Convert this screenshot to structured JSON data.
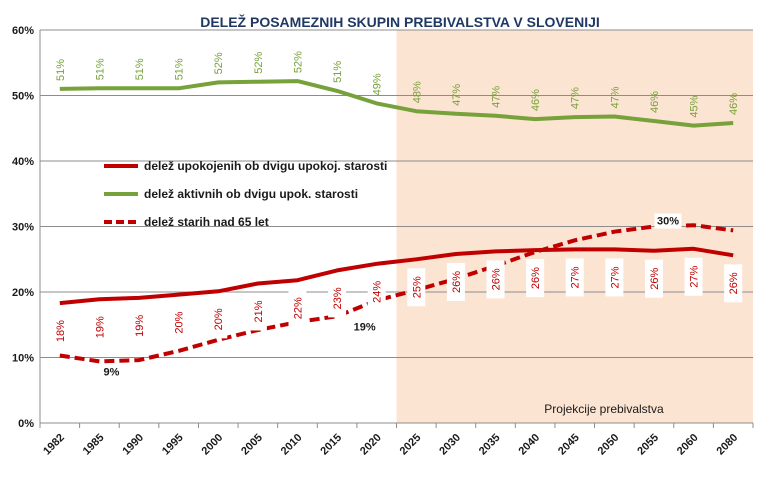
{
  "chart_data": {
    "type": "line",
    "title": "DELEŽ POSAMEZNIH SKUPIN PREBIVALSTVA V SLOVENIJI",
    "x": [
      "1982",
      "1985",
      "1990",
      "1995",
      "2000",
      "2005",
      "2010",
      "2015",
      "2020",
      "2025",
      "2030",
      "2035",
      "2040",
      "2045",
      "2050",
      "2055",
      "2060",
      "2080"
    ],
    "ylim": [
      0,
      60
    ],
    "yticks": [
      "0%",
      "10%",
      "20%",
      "30%",
      "40%",
      "50%",
      "60%"
    ],
    "grid": true,
    "legend_position": "center-left",
    "projection_label": "Projekcije prebivalstva",
    "projection_start": "2025",
    "projection_color": "#fce4d3",
    "series": [
      {
        "name": "delež upokojenih ob dvigu upokoj. starosti",
        "color": "#c00000",
        "style": "solid",
        "values": [
          18.3,
          18.9,
          19.1,
          19.6,
          20.1,
          21.3,
          21.8,
          23.3,
          24.3,
          25.0,
          25.8,
          26.2,
          26.4,
          26.5,
          26.5,
          26.3,
          26.6,
          25.6
        ],
        "labels": [
          "18%",
          "19%",
          "19%",
          "20%",
          "20%",
          "21%",
          "22%",
          "23%",
          "24%",
          "25%",
          "26%",
          "26%",
          "26%",
          "27%",
          "27%",
          "26%",
          "27%",
          "26%"
        ]
      },
      {
        "name": "delež aktivnih ob dvigu upok. starosti",
        "color": "#77a13a",
        "style": "solid",
        "values": [
          51.0,
          51.1,
          51.1,
          51.1,
          52.0,
          52.1,
          52.2,
          50.7,
          48.8,
          47.6,
          47.2,
          46.9,
          46.4,
          46.7,
          46.8,
          46.1,
          45.4,
          45.8
        ],
        "labels": [
          "51%",
          "51%",
          "51%",
          "51%",
          "52%",
          "52%",
          "52%",
          "51%",
          "49%",
          "48%",
          "47%",
          "47%",
          "46%",
          "47%",
          "47%",
          "46%",
          "45%",
          "46%"
        ]
      },
      {
        "name": "delež starih nad 65 let",
        "color": "#c00000",
        "style": "dashed",
        "values": [
          10.3,
          9.4,
          9.6,
          11.0,
          12.7,
          14.2,
          15.4,
          16.3,
          18.7,
          20.3,
          22.0,
          24.0,
          26.1,
          27.9,
          29.2,
          30.0,
          30.2,
          29.4
        ],
        "point_labels": [
          {
            "index": 1,
            "text": "9%"
          },
          {
            "index": 8,
            "text": "19%"
          },
          {
            "index": 15,
            "text": "30%"
          }
        ]
      }
    ]
  }
}
